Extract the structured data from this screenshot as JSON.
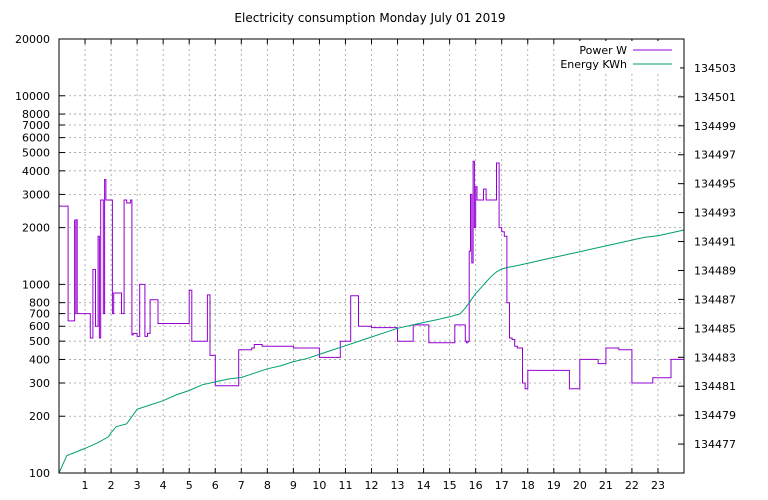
{
  "chart_data": {
    "type": "line",
    "title": "Electricity consumption Monday July 01 2019",
    "x_ticks": [
      1,
      2,
      3,
      4,
      5,
      6,
      7,
      8,
      9,
      10,
      11,
      12,
      13,
      14,
      15,
      16,
      17,
      18,
      19,
      20,
      21,
      22,
      23
    ],
    "xlim": [
      0,
      24
    ],
    "y_left": {
      "scale": "log",
      "lim": [
        100,
        20000
      ],
      "ticks": [
        100,
        200,
        300,
        400,
        500,
        600,
        700,
        800,
        1000,
        2000,
        3000,
        4000,
        5000,
        6000,
        7000,
        8000,
        10000,
        20000
      ]
    },
    "y_right": {
      "lim": [
        134475,
        134505
      ],
      "ticks": [
        134477,
        134479,
        134481,
        134483,
        134485,
        134487,
        134489,
        134491,
        134493,
        134495,
        134497,
        134499,
        134501,
        134503
      ]
    },
    "grid": true,
    "legend_position": "top-right",
    "series": [
      {
        "name": "Power W",
        "color": "#9400d3",
        "axis": "left",
        "x": [
          0,
          0.35,
          0.35,
          0.55,
          0.6,
          0.6,
          0.65,
          0.7,
          0.72,
          0.75,
          1.0,
          1.2,
          1.3,
          1.4,
          1.5,
          1.55,
          1.6,
          1.7,
          1.75,
          1.8,
          2.0,
          2.05,
          2.1,
          2.4,
          2.5,
          2.6,
          2.75,
          2.8,
          2.85,
          3.0,
          3.1,
          3.3,
          3.4,
          3.5,
          3.8,
          3.9,
          4.0,
          5.0,
          5.0,
          5.1,
          5.6,
          5.7,
          5.8,
          6.0,
          6.3,
          6.5,
          6.9,
          7.0,
          7.4,
          7.5,
          7.8,
          8.5,
          9.0,
          9.5,
          9.7,
          10.0,
          10.5,
          10.8,
          11.0,
          11.2,
          11.5,
          11.7,
          12.0,
          12.4,
          12.6,
          13.0,
          13.4,
          13.6,
          13.8,
          14.2,
          14.6,
          14.8,
          15.2,
          15.5,
          15.6,
          15.65,
          15.7,
          15.75,
          15.8,
          15.85,
          15.9,
          15.95,
          16.0,
          16.05,
          16.1,
          16.2,
          16.3,
          16.4,
          16.5,
          16.6,
          16.7,
          16.8,
          16.9,
          17.0,
          17.1,
          17.2,
          17.3,
          17.4,
          17.5,
          17.6,
          17.8,
          17.9,
          18.0,
          18.5,
          19.0,
          19.4,
          19.6,
          19.8,
          20.0,
          20.5,
          20.7,
          21.0,
          21.2,
          21.5,
          21.7,
          22.0,
          22.5,
          22.8,
          23.0,
          23.5,
          23.9,
          24.0
        ],
        "y": [
          2600,
          2600,
          640,
          640,
          2200,
          700,
          2200,
          700,
          700,
          700,
          700,
          520,
          1200,
          600,
          1800,
          520,
          2800,
          700,
          3600,
          2800,
          2800,
          700,
          900,
          700,
          2800,
          2700,
          2800,
          540,
          550,
          530,
          1000,
          530,
          550,
          830,
          620,
          620,
          620,
          620,
          930,
          500,
          500,
          880,
          420,
          290,
          290,
          290,
          450,
          450,
          460,
          480,
          470,
          470,
          460,
          460,
          460,
          410,
          410,
          500,
          500,
          870,
          600,
          600,
          590,
          590,
          590,
          500,
          500,
          610,
          610,
          490,
          490,
          490,
          610,
          610,
          500,
          490,
          500,
          1500,
          3000,
          1300,
          4500,
          2000,
          3300,
          2800,
          2800,
          2800,
          3200,
          2800,
          2800,
          2800,
          2800,
          4400,
          2000,
          1900,
          1800,
          800,
          520,
          510,
          470,
          460,
          300,
          280,
          350,
          350,
          350,
          350,
          280,
          280,
          400,
          400,
          380,
          460,
          460,
          450,
          450,
          300,
          300,
          320,
          320,
          400,
          400,
          550
        ]
      },
      {
        "name": "Energy KWh",
        "color": "#009e73",
        "axis": "right",
        "x": [
          0,
          0.3,
          1.0,
          1.5,
          1.9,
          2.0,
          2.2,
          2.6,
          3.0,
          3.5,
          4.0,
          4.5,
          5.0,
          5.5,
          6.0,
          6.5,
          7.0,
          7.5,
          8.0,
          8.5,
          9.0,
          9.5,
          10.0,
          10.5,
          11.0,
          11.5,
          12.0,
          12.5,
          13.0,
          13.5,
          14.0,
          14.5,
          15.0,
          15.4,
          15.6,
          15.8,
          16.0,
          16.2,
          16.4,
          16.6,
          16.8,
          17.0,
          17.2,
          17.5,
          18.0,
          18.5,
          19.0,
          19.5,
          20.0,
          20.5,
          21.0,
          21.5,
          22.0,
          22.5,
          23.0,
          23.5,
          24.0
        ],
        "y": [
          134475,
          134476.2,
          134476.7,
          134477.1,
          134477.5,
          134477.8,
          134478.2,
          134478.4,
          134479.4,
          134479.7,
          134480.0,
          134480.4,
          134480.7,
          134481.1,
          134481.3,
          134481.5,
          134481.6,
          134481.9,
          134482.2,
          134482.4,
          134482.7,
          134482.9,
          134483.2,
          134483.5,
          134483.8,
          134484.1,
          134484.4,
          134484.7,
          134485.0,
          134485.2,
          134485.4,
          134485.6,
          134485.8,
          134486.0,
          134486.4,
          134486.9,
          134487.4,
          134487.8,
          134488.2,
          134488.6,
          134488.9,
          134489.1,
          134489.2,
          134489.3,
          134489.5,
          134489.7,
          134489.9,
          134490.1,
          134490.3,
          134490.5,
          134490.7,
          134490.9,
          134491.1,
          134491.3,
          134491.4,
          134491.6,
          134491.8
        ]
      }
    ]
  }
}
